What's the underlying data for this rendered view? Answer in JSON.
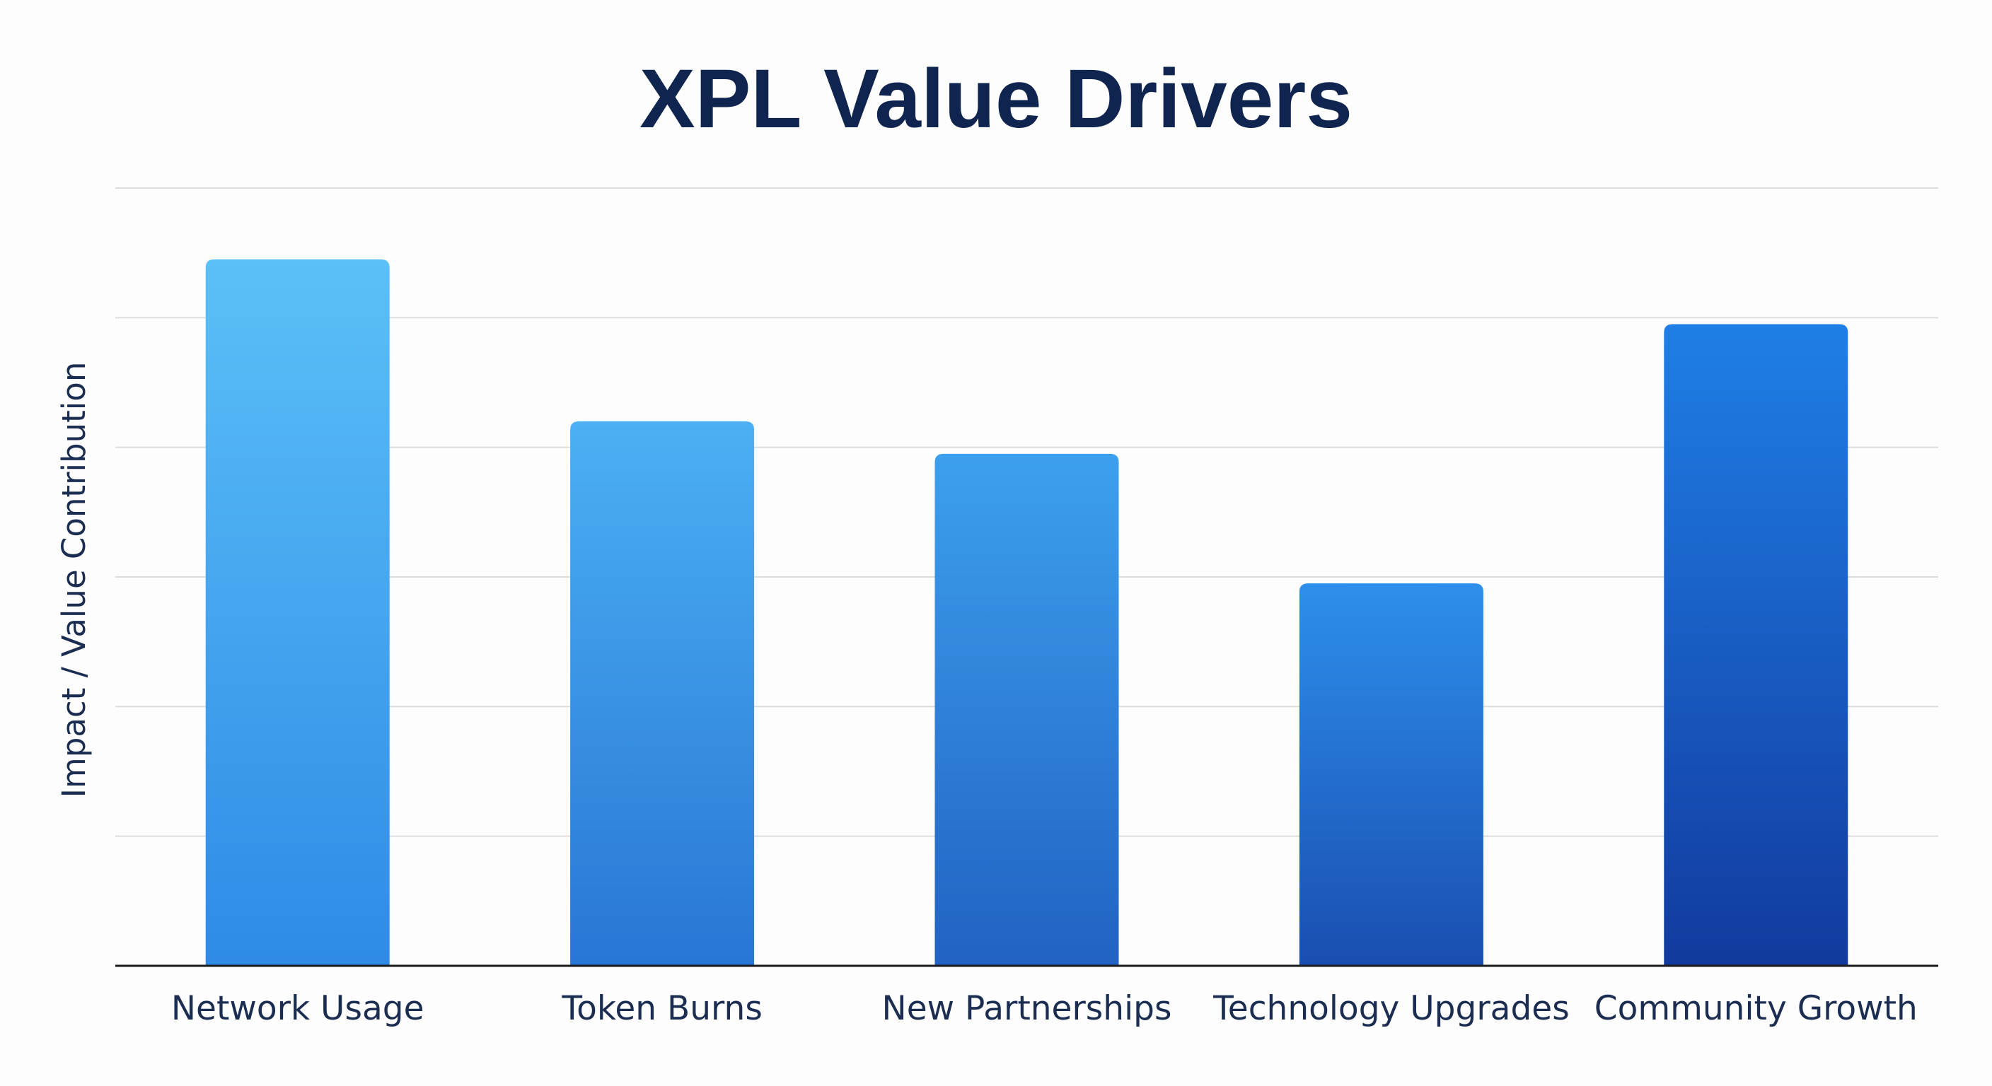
{
  "chart_data": {
    "type": "bar",
    "title": "XPL Value Drivers",
    "xlabel": "",
    "ylabel": "Impact / Value Contribution",
    "categories": [
      "Network Usage",
      "Token Burns",
      "New Partnerships",
      "Technology Upgrades",
      "Community Growth"
    ],
    "values": [
      5.45,
      4.2,
      3.95,
      2.95,
      4.95
    ],
    "ylim": [
      0,
      6
    ],
    "grid": true,
    "y_tick_labels_shown": false,
    "legend": "none",
    "colors": {
      "bar_top_light": "#5bc0f8",
      "bar_bottom_light": "#2f8ae6",
      "bar_top_dark": "#1f7fe6",
      "bar_bottom_dark": "#123a9e",
      "title": "#0f2550",
      "grid": "#dddddd",
      "axis": "#1a1a1a"
    }
  }
}
